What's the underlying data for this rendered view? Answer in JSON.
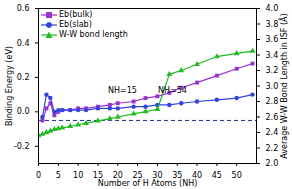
{
  "chart_data": {
    "type": "line",
    "xlabel": "Number of H Atoms (NH)",
    "ylabel": "Binding Energy (eV)",
    "y2label": "Average W-W Bond Length in ISF (Å)",
    "xlim": [
      0,
      55
    ],
    "xticks": [
      0,
      5,
      10,
      15,
      20,
      25,
      30,
      35,
      40,
      45,
      50
    ],
    "ylim": [
      -0.3,
      0.6
    ],
    "yticks": [
      -0.2,
      {
        "value": 0,
        "label": "0.0"
      },
      0.2,
      0.4,
      0.6
    ],
    "y2lim": [
      2.0,
      4.0
    ],
    "y2ticks": [
      {
        "value": 2,
        "label": "2.0"
      },
      2.2,
      2.4,
      2.6,
      2.8,
      {
        "value": 3,
        "label": "3.0"
      },
      3.2,
      3.4,
      3.6,
      3.8,
      {
        "value": 4,
        "label": "4.0"
      }
    ],
    "legend": "upper left",
    "reference_line": -0.05,
    "annotations": [
      "NH=15",
      "NH=54"
    ],
    "series": [
      {
        "name": "Eb(bulk)",
        "color": "#9933cc",
        "marker": "square",
        "x": [
          1,
          2,
          3,
          4,
          5,
          6,
          8,
          10,
          12,
          15,
          18,
          20,
          24,
          27,
          30,
          33,
          36,
          40,
          45,
          50,
          54
        ],
        "values": [
          -0.05,
          0.02,
          0.05,
          -0.02,
          0.0,
          0.01,
          0.01,
          0.02,
          0.02,
          0.03,
          0.04,
          0.05,
          0.06,
          0.08,
          0.09,
          0.11,
          0.14,
          0.17,
          0.21,
          0.25,
          0.28
        ]
      },
      {
        "name": "Eb(slab)",
        "color": "#3344dd",
        "marker": "circle",
        "x": [
          1,
          2,
          3,
          4,
          5,
          6,
          8,
          10,
          12,
          15,
          18,
          20,
          24,
          27,
          30,
          33,
          36,
          40,
          45,
          50,
          54
        ],
        "values": [
          -0.03,
          0.1,
          0.08,
          0.0,
          0.01,
          0.01,
          0.01,
          0.01,
          0.01,
          0.02,
          0.02,
          0.02,
          0.03,
          0.03,
          0.04,
          0.04,
          0.05,
          0.06,
          0.07,
          0.08,
          0.1
        ]
      },
      {
        "name": "W-W bond length",
        "color": "#22bb22",
        "marker": "triangle",
        "axis": "y2",
        "x": [
          0,
          1,
          2,
          3,
          4,
          5,
          6,
          8,
          10,
          12,
          15,
          18,
          20,
          24,
          27,
          30,
          33,
          36,
          40,
          45,
          50,
          54
        ],
        "values": [
          2.36,
          2.38,
          2.4,
          2.42,
          2.44,
          2.45,
          2.46,
          2.48,
          2.5,
          2.52,
          2.55,
          2.58,
          2.6,
          2.64,
          2.67,
          2.7,
          3.15,
          3.2,
          3.28,
          3.38,
          3.42,
          3.45
        ]
      }
    ]
  }
}
